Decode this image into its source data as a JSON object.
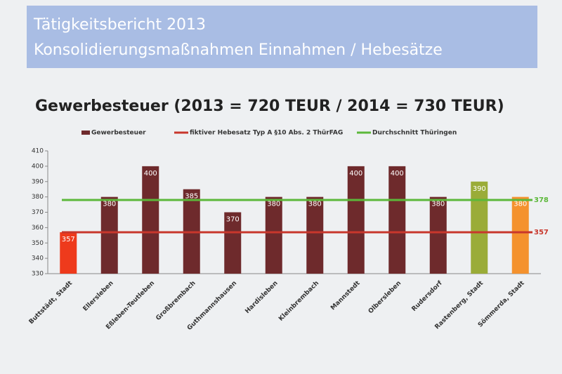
{
  "header": {
    "title": "Tätigkeitsbericht 2013",
    "subtitle": "Konsolidierungsmaßnahmen Einnahmen / Hebesätze"
  },
  "chart_data": {
    "type": "bar",
    "title": "Gewerbesteuer (2013 = 720 TEUR / 2014 = 730 TEUR)",
    "categories": [
      "Buttstädt, Stadt",
      "Ellersleben",
      "Eßleben-Teutleben",
      "Großbrembach",
      "Guthmannshausen",
      "Hardisleben",
      "Kleinbrembach",
      "Mannstedt",
      "Olbersleben",
      "Rudersdorf",
      "Rastenberg, Stadt",
      "Sömmerda, Stadt"
    ],
    "series": [
      {
        "name": "Gewerbesteuer",
        "color": "#6e2a2c",
        "point_colors": [
          "#ee3a1c",
          "#6e2a2c",
          "#6e2a2c",
          "#6e2a2c",
          "#6e2a2c",
          "#6e2a2c",
          "#6e2a2c",
          "#6e2a2c",
          "#6e2a2c",
          "#6e2a2c",
          "#9aac38",
          "#f4922e"
        ],
        "values": [
          357,
          380,
          400,
          385,
          370,
          380,
          380,
          400,
          400,
          380,
          390,
          380
        ]
      },
      {
        "name": "fiktiver Hebesatz Typ A §10 Abs. 2 ThürFAG",
        "color": "#c8372c",
        "value": 357
      },
      {
        "name": "Durchschnitt Thüringen",
        "color": "#5cb83a",
        "value": 378
      }
    ],
    "ylim": [
      330,
      410
    ],
    "yticks": [
      330,
      340,
      350,
      360,
      370,
      380,
      390,
      400,
      410
    ]
  }
}
